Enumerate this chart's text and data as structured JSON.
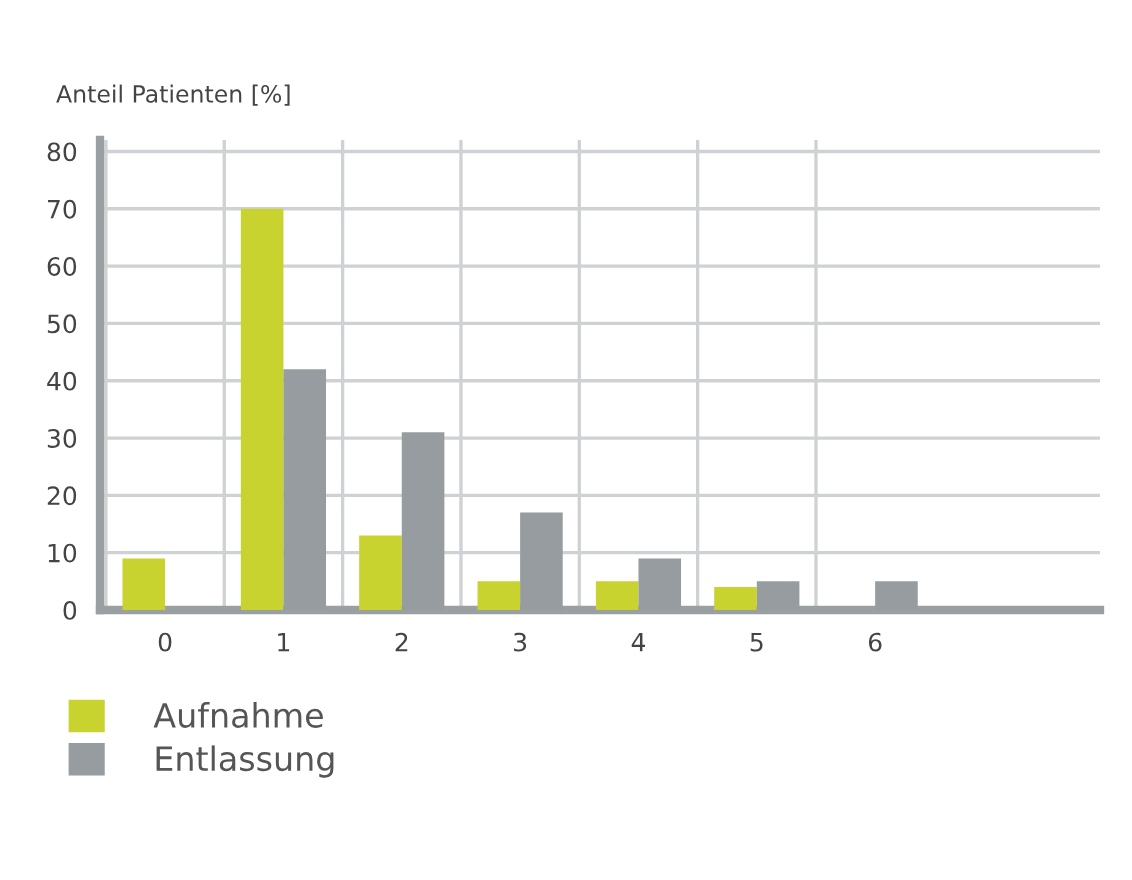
{
  "chart_data": {
    "type": "bar",
    "ylabel": "Anteil Patienten [%]",
    "categories": [
      "0",
      "1",
      "2",
      "3",
      "4",
      "5",
      "6"
    ],
    "series": [
      {
        "name": "Aufnahme",
        "color": "#c8d32f",
        "values": [
          9,
          70,
          13,
          5,
          5,
          4,
          null
        ]
      },
      {
        "name": "Entlassung",
        "color": "#969c9f",
        "values": [
          null,
          42,
          31,
          17,
          9,
          5,
          5
        ]
      }
    ],
    "ylim": [
      0,
      82
    ],
    "yticks": [
      0,
      10,
      20,
      30,
      40,
      50,
      60,
      70,
      80
    ],
    "grid": true,
    "legend": "bottom left"
  }
}
